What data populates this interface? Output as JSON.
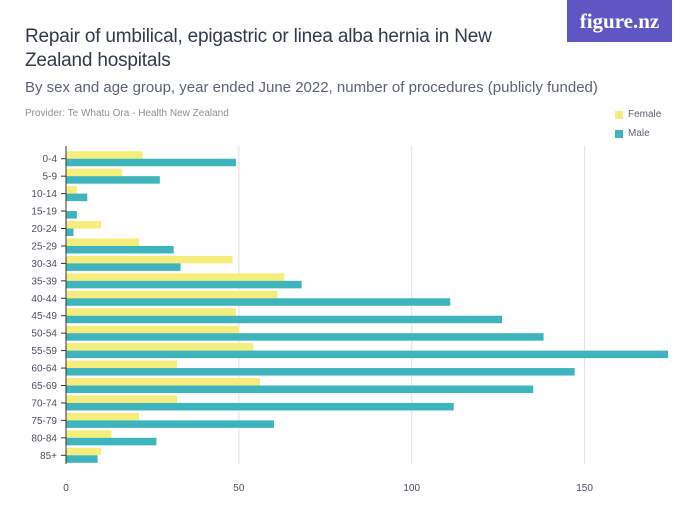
{
  "header": {
    "title": "Repair of umbilical, epigastric or linea alba hernia in New Zealand hospitals",
    "subtitle": "By sex and age group, year ended June 2022, number of procedures (publicly funded)",
    "provider": "Provider: Te Whatu Ora - Health New Zealand",
    "logo": "figure.nz"
  },
  "colors": {
    "female": "#f5ee7d",
    "male": "#3eb4bd",
    "grid": "#e2e2e2",
    "axis": "#333333"
  },
  "chart_data": {
    "type": "bar",
    "orientation": "horizontal",
    "title": "Repair of umbilical, epigastric or linea alba hernia in New Zealand hospitals",
    "xlabel": "",
    "ylabel": "",
    "xlim": [
      0,
      175
    ],
    "xticks": [
      0,
      50,
      100,
      150
    ],
    "legend_position": "top-right",
    "categories": [
      "0-4",
      "5-9",
      "10-14",
      "15-19",
      "20-24",
      "25-29",
      "30-34",
      "35-39",
      "40-44",
      "45-49",
      "50-54",
      "55-59",
      "60-64",
      "65-69",
      "70-74",
      "75-79",
      "80-84",
      "85+"
    ],
    "series": [
      {
        "name": "Female",
        "values": [
          22,
          16,
          3,
          0,
          10,
          21,
          48,
          63,
          61,
          49,
          50,
          54,
          32,
          56,
          32,
          21,
          13,
          10
        ]
      },
      {
        "name": "Male",
        "values": [
          49,
          27,
          6,
          3,
          2,
          31,
          33,
          68,
          111,
          126,
          138,
          174,
          147,
          135,
          112,
          60,
          26,
          9
        ]
      }
    ]
  }
}
